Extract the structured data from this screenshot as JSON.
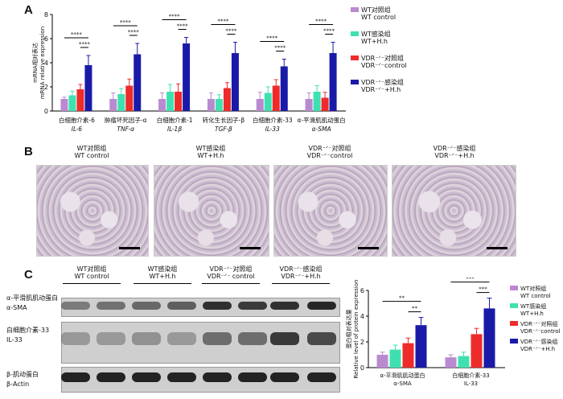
{
  "panels": {
    "a": "A",
    "b": "B",
    "c": "C"
  },
  "legend_a": [
    {
      "cn": "WT对照组",
      "en": "WT control",
      "color": "#b98ad0"
    },
    {
      "cn": "WT感染组",
      "en": "WT+H.h",
      "color": "#3fe0b0"
    },
    {
      "cn": "VDR⁻ᐟ⁻对照组",
      "en": "VDR⁻ᐟ⁻control",
      "color": "#ee2b2b"
    },
    {
      "cn": "VDR⁻ᐟ⁻感染组",
      "en": "VDR⁻ᐟ⁻+H.h",
      "color": "#1a1aa8"
    }
  ],
  "micrographs": [
    {
      "cn": "WT对照组",
      "en": "WT control"
    },
    {
      "cn": "WT感染组",
      "en": "WT+H.h"
    },
    {
      "cn": "VDR⁻ᐟ⁻对照组",
      "en": "VDR⁻ᐟ⁻control"
    },
    {
      "cn": "VDR⁻ᐟ⁻感染组",
      "en": "VDR⁻ᐟ⁻+H.h"
    }
  ],
  "blot": {
    "groups": [
      {
        "cn": "WT对照组",
        "en": "WT control"
      },
      {
        "cn": "WT感染组",
        "en": "WT+H.h"
      },
      {
        "cn": "VDR⁻ᐟ⁻对照组",
        "en": "VDR⁻ᐟ⁻ control"
      },
      {
        "cn": "VDR⁻ᐟ⁻感染组",
        "en": "VDR⁻ᐟ⁻+H.h"
      }
    ],
    "rows": [
      {
        "cn": "α-平滑肌肌动蛋白",
        "en": "α-SMA"
      },
      {
        "cn": "白细胞介素-33",
        "en": "IL-33"
      },
      {
        "cn": "β-肌动蛋白",
        "en": "β-Actin"
      }
    ]
  },
  "chart_data": [
    {
      "type": "bar",
      "ylabel_cn": "mRNA相对表达",
      "ylabel_en": "mRNA relative expression",
      "ylim": [
        0,
        8
      ],
      "yticks": [
        0,
        2,
        4,
        6,
        8
      ],
      "categories": [
        {
          "cn": "白细胞介素-6",
          "en": "IL-6"
        },
        {
          "cn": "肿瘤坏死因子-α",
          "en": "TNF-α"
        },
        {
          "cn": "白细胞介素-1",
          "en": "IL-1β"
        },
        {
          "cn": "转化生长因子-β",
          "en": "TGF-β"
        },
        {
          "cn": "白细胞介素-33",
          "en": "IL-33"
        },
        {
          "cn": "α-平滑肌肌动蛋白",
          "en": "α-SMA"
        }
      ],
      "series": [
        {
          "name": "WT control",
          "values": [
            1.0,
            1.0,
            1.0,
            1.0,
            1.0,
            1.0
          ],
          "errors": [
            0.15,
            0.5,
            0.5,
            0.5,
            0.55,
            0.5
          ]
        },
        {
          "name": "WT+H.h",
          "values": [
            1.3,
            1.4,
            1.6,
            1.0,
            1.5,
            1.6
          ],
          "errors": [
            0.35,
            0.45,
            0.6,
            0.35,
            0.5,
            0.5
          ]
        },
        {
          "name": "VDR-/- control",
          "values": [
            1.8,
            2.1,
            1.6,
            1.9,
            2.1,
            1.1
          ],
          "errors": [
            0.4,
            0.55,
            0.65,
            0.45,
            0.5,
            0.45
          ]
        },
        {
          "name": "VDR-/- +H.h",
          "values": [
            3.8,
            4.7,
            5.6,
            4.8,
            3.7,
            4.8
          ],
          "errors": [
            0.8,
            0.9,
            0.5,
            0.9,
            0.6,
            0.9
          ]
        }
      ],
      "significance": "****"
    },
    {
      "type": "bar",
      "ylabel_cn": "蛋白相对表达量",
      "ylabel_en": "Relative level of protein expression",
      "ylim": [
        0,
        6
      ],
      "yticks": [
        0,
        2,
        4,
        6
      ],
      "categories": [
        {
          "cn": "α-平滑肌肌动蛋白",
          "en": "α-SMA"
        },
        {
          "cn": "白细胞介素-33",
          "en": "IL-33"
        }
      ],
      "series": [
        {
          "name": "WT control",
          "values": [
            1.0,
            0.8
          ],
          "errors": [
            0.2,
            0.2
          ]
        },
        {
          "name": "WT+H.h",
          "values": [
            1.4,
            0.9
          ],
          "errors": [
            0.35,
            0.3
          ]
        },
        {
          "name": "VDR-/- control",
          "values": [
            1.9,
            2.6
          ],
          "errors": [
            0.4,
            0.45
          ]
        },
        {
          "name": "VDR-/- +H.h",
          "values": [
            3.3,
            4.6
          ],
          "errors": [
            0.6,
            0.8
          ]
        }
      ],
      "significance_a": "**",
      "significance_b": "***"
    }
  ],
  "legend_c": [
    {
      "cn": "WT对照组",
      "en": "WT control",
      "color": "#b98ad0"
    },
    {
      "cn": "WT感染组",
      "en": "WT+H.h",
      "color": "#3fe0b0"
    },
    {
      "cn": "VDR⁻ᐟ⁻对照组",
      "en": "VDR⁻ᐟ⁻control",
      "color": "#ee2b2b"
    },
    {
      "cn": "VDR⁻ᐟ⁻感染组",
      "en": "VDR⁻ᐟ⁻+H.h",
      "color": "#1a1aa8"
    }
  ]
}
